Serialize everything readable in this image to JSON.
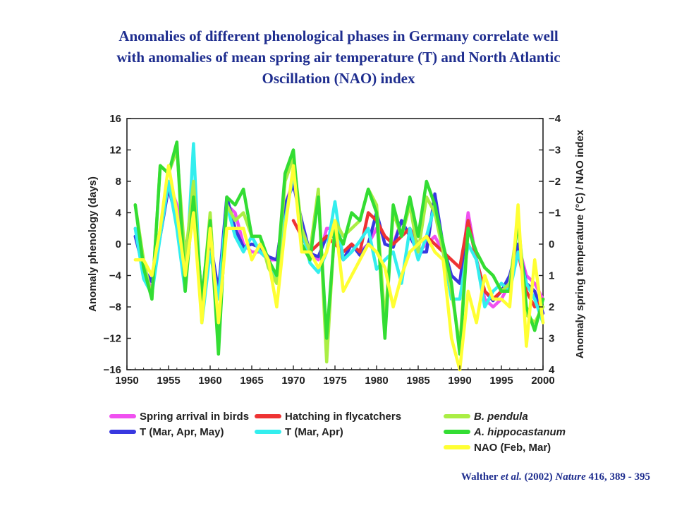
{
  "slide": {
    "title_lines": [
      "Anomalies of different phenological phases in Germany correlate well",
      "with anomalies of mean spring air temperature (T) and North Atlantic",
      "Oscillation (NAO) index"
    ],
    "citation": {
      "authors": "Walther ",
      "etal": "et al.",
      "year": " (2002) ",
      "journal": "Nature",
      "rest": " 416, 389 - 395"
    }
  },
  "chart_data": {
    "type": "line",
    "xlabel": "",
    "ylabel_left": "Anomaly phenology (days)",
    "ylabel_right": "Anomaly spring temperature (°C) / NAO index",
    "xlim": [
      1950,
      2000
    ],
    "ylim_left": [
      -16,
      16
    ],
    "ylim_right": [
      4,
      -4
    ],
    "x_ticks": [
      "1950",
      "1955",
      "1960",
      "1965",
      "1970",
      "1975",
      "1980",
      "1985",
      "1990",
      "1995",
      "2000"
    ],
    "y_left_ticks": [
      "16",
      "12",
      "8",
      "4",
      "0",
      "−4",
      "−8",
      "−12",
      "−16"
    ],
    "y_right_ticks": [
      "−4",
      "−3",
      "−2",
      "−1",
      "0",
      "1",
      "2",
      "3",
      "4"
    ],
    "x": [
      1951,
      1952,
      1953,
      1954,
      1955,
      1956,
      1957,
      1958,
      1959,
      1960,
      1961,
      1962,
      1963,
      1964,
      1965,
      1966,
      1967,
      1968,
      1969,
      1970,
      1971,
      1972,
      1973,
      1974,
      1975,
      1976,
      1977,
      1978,
      1979,
      1980,
      1981,
      1982,
      1983,
      1984,
      1985,
      1986,
      1987,
      1988,
      1989,
      1990,
      1991,
      1992,
      1993,
      1994,
      1995,
      1996,
      1997,
      1998,
      1999,
      2000
    ],
    "series": [
      {
        "name": "Spring arrival in birds",
        "color": "#f050f0",
        "axis": "left",
        "values": [
          2,
          -3,
          -6,
          2,
          8,
          5,
          -1,
          5,
          -7,
          -1,
          -6,
          5,
          4,
          0,
          -1,
          -1,
          -2,
          -2,
          5,
          8,
          2,
          -1,
          -2,
          2,
          2,
          -2,
          0,
          -1,
          0,
          2,
          1,
          0,
          3,
          1,
          -1,
          0,
          1,
          -1,
          -4,
          -5,
          4,
          -2,
          -7,
          -8,
          -7,
          -5,
          0,
          -4,
          -5,
          -7
        ]
      },
      {
        "name": "T (Mar, Apr, May)",
        "color": "#3838e0",
        "axis": "right",
        "values": [
          -0.25,
          0.8,
          1.2,
          -0.25,
          -1.8,
          -0.75,
          0.25,
          -1.3,
          1.7,
          -0.1,
          1.5,
          -1.5,
          -0.5,
          0.1,
          0,
          0.1,
          0.4,
          0.5,
          -1.25,
          -1.9,
          -0.75,
          0.3,
          0.4,
          -0.25,
          -0.25,
          0.5,
          0,
          0.35,
          0,
          -1,
          0,
          0.1,
          -0.75,
          -0.25,
          0.25,
          0.25,
          -1.6,
          0.05,
          1,
          1.25,
          -0.75,
          0.5,
          1.5,
          1.8,
          1.5,
          1,
          0,
          1.25,
          1.5,
          2.2
        ]
      },
      {
        "name": "Hatching in flycatchers",
        "color": "#ee3333",
        "axis": "left",
        "values": [
          null,
          null,
          null,
          null,
          null,
          null,
          null,
          null,
          null,
          null,
          null,
          null,
          null,
          null,
          null,
          null,
          null,
          null,
          null,
          3,
          1,
          -1,
          0,
          1,
          0,
          -1,
          0,
          -1,
          4,
          3,
          1,
          0,
          1,
          2,
          0,
          1,
          0,
          -1,
          -2,
          -3,
          3,
          -2,
          -6,
          -7,
          -6,
          -5,
          -1,
          -6,
          -8,
          -7
        ]
      },
      {
        "name": "T (Mar, Apr)",
        "color": "#33eeee",
        "axis": "right",
        "values": [
          -0.5,
          1.1,
          1.6,
          -0.25,
          -2,
          -0.5,
          1.5,
          -3.2,
          2.5,
          0.25,
          1.75,
          -1.25,
          -0.25,
          0.25,
          -0.25,
          0.25,
          0.5,
          1.25,
          -0.75,
          -2.25,
          -0.5,
          0.6,
          0.9,
          0.25,
          -1.35,
          0.5,
          0.25,
          -0.1,
          -0.5,
          0.8,
          0.5,
          0.25,
          1.25,
          -0.5,
          0.5,
          -0.25,
          -1.25,
          0.25,
          1.75,
          1.75,
          0,
          0.5,
          2,
          1.5,
          1.25,
          1.5,
          0.25,
          1.25,
          1.75,
          2.5
        ]
      },
      {
        "name": "B. pendula",
        "color": "#aaee44",
        "axis": "left",
        "values": [
          5,
          -2,
          -7,
          10,
          9,
          12,
          -2,
          8,
          -8,
          4,
          -13,
          5,
          3,
          4,
          1,
          1,
          -3,
          -5,
          8,
          11,
          2,
          -1,
          7,
          -15,
          3,
          1,
          2,
          3,
          7,
          5,
          -10,
          4,
          1,
          5,
          -1,
          6,
          4,
          -1,
          -6,
          -13,
          2,
          -1,
          -3,
          -4,
          -6,
          -5,
          3,
          -9,
          -10,
          -8
        ]
      },
      {
        "name": "A. hippocastanum",
        "color": "#33dd33",
        "axis": "left",
        "values": [
          5,
          -3,
          -7,
          10,
          9,
          13,
          -6,
          6,
          -7,
          3,
          -14,
          6,
          5,
          7,
          1,
          1,
          -2,
          -4,
          9,
          12,
          0,
          -2,
          6,
          -12,
          2,
          0,
          4,
          3,
          7,
          4,
          -12,
          5,
          1,
          6,
          1,
          8,
          5,
          0,
          -5,
          -14,
          2,
          -1,
          -3,
          -4,
          -6,
          -6,
          3,
          -8,
          -11,
          -7
        ]
      },
      {
        "name": "NAO (Feb, Mar)",
        "color": "#ffff33",
        "axis": "right",
        "values": [
          0.5,
          0.5,
          1,
          -0.5,
          -2.5,
          -1,
          1,
          -1,
          2.5,
          -0.5,
          2.5,
          -0.5,
          -0.5,
          -0.5,
          0.5,
          0,
          0.5,
          2,
          -0.5,
          -2.5,
          0.25,
          0.25,
          0.75,
          0.25,
          -0.75,
          1.5,
          1,
          0.5,
          0,
          0.25,
          0.75,
          2,
          1,
          0.25,
          0,
          -0.25,
          0.25,
          0.5,
          3,
          4,
          1.5,
          2.5,
          1,
          1.75,
          1.75,
          2,
          -1.25,
          3.25,
          0.5,
          2.5
        ]
      }
    ],
    "legend": [
      {
        "label": "Spring arrival in birds",
        "color": "#f050f0",
        "italic": false
      },
      {
        "label": "Hatching in flycatchers",
        "color": "#ee3333",
        "italic": false
      },
      {
        "label": "B. pendula",
        "color": "#aaee44",
        "italic": true
      },
      {
        "label": "T (Mar, Apr, May)",
        "color": "#3838e0",
        "italic": false
      },
      {
        "label": "T (Mar, Apr)",
        "color": "#33eeee",
        "italic": false
      },
      {
        "label": "A. hippocastanum",
        "color": "#33dd33",
        "italic": true
      },
      {
        "label": "NAO (Feb, Mar)",
        "color": "#ffff33",
        "italic": false
      }
    ],
    "legend_placement": "bottom",
    "grid": false
  }
}
